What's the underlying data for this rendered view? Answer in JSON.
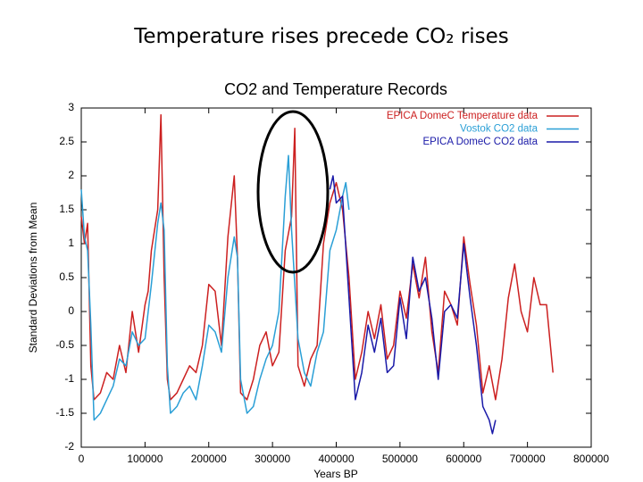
{
  "slide_title": "Temperature rises precede CO₂ rises",
  "chart_data": {
    "type": "line",
    "title": "CO2 and Temperature Records",
    "x_label": "Years BP",
    "y_label": "Standard Deviations from Mean",
    "xlim": [
      0,
      800000
    ],
    "ylim": [
      -2,
      3
    ],
    "xticks": [
      0,
      100000,
      200000,
      300000,
      400000,
      500000,
      600000,
      700000,
      800000
    ],
    "yticks": [
      -2,
      -1.5,
      -1,
      -0.5,
      0,
      0.5,
      1,
      1.5,
      2,
      2.5,
      3
    ],
    "grid": false,
    "legend": "upper right",
    "series": [
      {
        "name": "EPICA DomeC Temperature data",
        "color": "#cc2020",
        "x": [
          0,
          5000,
          10000,
          15000,
          20000,
          30000,
          40000,
          50000,
          60000,
          70000,
          80000,
          90000,
          100000,
          105000,
          110000,
          120000,
          125000,
          130000,
          135000,
          140000,
          150000,
          160000,
          170000,
          180000,
          190000,
          200000,
          210000,
          220000,
          230000,
          240000,
          245000,
          250000,
          260000,
          270000,
          280000,
          290000,
          300000,
          310000,
          320000,
          330000,
          335000,
          340000,
          350000,
          360000,
          370000,
          380000,
          390000,
          400000,
          410000,
          420000,
          430000,
          440000,
          450000,
          460000,
          470000,
          480000,
          490000,
          500000,
          510000,
          520000,
          530000,
          540000,
          550000,
          560000,
          570000,
          580000,
          590000,
          600000,
          610000,
          620000,
          630000,
          640000,
          650000,
          660000,
          670000,
          680000,
          690000,
          700000,
          710000,
          720000,
          730000,
          740000
        ],
        "values": [
          1.4,
          1.0,
          1.3,
          -0.8,
          -1.3,
          -1.2,
          -0.9,
          -1.0,
          -0.5,
          -0.9,
          0.0,
          -0.6,
          0.1,
          0.3,
          0.9,
          1.5,
          2.9,
          0.5,
          -1.0,
          -1.3,
          -1.2,
          -1.0,
          -0.8,
          -0.9,
          -0.5,
          0.4,
          0.3,
          -0.5,
          1.1,
          2.0,
          0.8,
          -1.2,
          -1.3,
          -1.0,
          -0.5,
          -0.3,
          -0.8,
          -0.6,
          0.9,
          1.4,
          2.7,
          -0.8,
          -1.1,
          -0.7,
          -0.5,
          1.0,
          1.6,
          1.9,
          1.5,
          0.5,
          -1.0,
          -0.6,
          0.0,
          -0.4,
          0.1,
          -0.7,
          -0.5,
          0.3,
          -0.1,
          0.7,
          0.2,
          0.8,
          -0.3,
          -0.9,
          0.3,
          0.1,
          -0.2,
          1.1,
          0.4,
          -0.2,
          -1.2,
          -0.8,
          -1.3,
          -0.7,
          0.2,
          0.7,
          0.0,
          -0.3,
          0.5,
          0.1,
          0.1,
          -0.9
        ]
      },
      {
        "name": "Vostok CO2 data",
        "color": "#2a9fd6",
        "x": [
          0,
          5000,
          10000,
          15000,
          20000,
          30000,
          40000,
          50000,
          60000,
          70000,
          80000,
          90000,
          100000,
          110000,
          120000,
          125000,
          130000,
          135000,
          140000,
          150000,
          160000,
          170000,
          180000,
          190000,
          200000,
          210000,
          220000,
          230000,
          240000,
          245000,
          250000,
          260000,
          270000,
          280000,
          290000,
          300000,
          310000,
          320000,
          325000,
          330000,
          340000,
          350000,
          360000,
          370000,
          380000,
          390000,
          400000,
          410000,
          415000,
          420000
        ],
        "values": [
          1.8,
          1.1,
          0.9,
          -0.2,
          -1.6,
          -1.5,
          -1.3,
          -1.1,
          -0.7,
          -0.8,
          -0.3,
          -0.5,
          -0.4,
          0.4,
          1.3,
          1.6,
          1.2,
          -0.8,
          -1.5,
          -1.4,
          -1.2,
          -1.1,
          -1.3,
          -0.8,
          -0.2,
          -0.3,
          -0.6,
          0.5,
          1.1,
          0.8,
          -1.0,
          -1.5,
          -1.4,
          -1.0,
          -0.7,
          -0.5,
          0.0,
          1.7,
          2.3,
          1.2,
          -0.4,
          -0.9,
          -1.1,
          -0.6,
          -0.3,
          0.9,
          1.2,
          1.7,
          1.9,
          1.5
        ]
      },
      {
        "name": "EPICA DomeC CO2 data",
        "color": "#1a1aa8",
        "x": [
          390000,
          395000,
          400000,
          410000,
          420000,
          430000,
          440000,
          450000,
          460000,
          470000,
          480000,
          490000,
          500000,
          510000,
          520000,
          530000,
          540000,
          550000,
          560000,
          570000,
          580000,
          590000,
          600000,
          605000,
          610000,
          620000,
          630000,
          640000,
          645000,
          650000
        ],
        "values": [
          1.8,
          2.0,
          1.6,
          1.7,
          0.2,
          -1.3,
          -0.9,
          -0.2,
          -0.6,
          -0.1,
          -0.9,
          -0.8,
          0.2,
          -0.4,
          0.8,
          0.3,
          0.5,
          -0.1,
          -1.0,
          0.0,
          0.1,
          -0.1,
          1.0,
          0.6,
          0.2,
          -0.5,
          -1.4,
          -1.6,
          -1.8,
          -1.6
        ]
      }
    ]
  }
}
